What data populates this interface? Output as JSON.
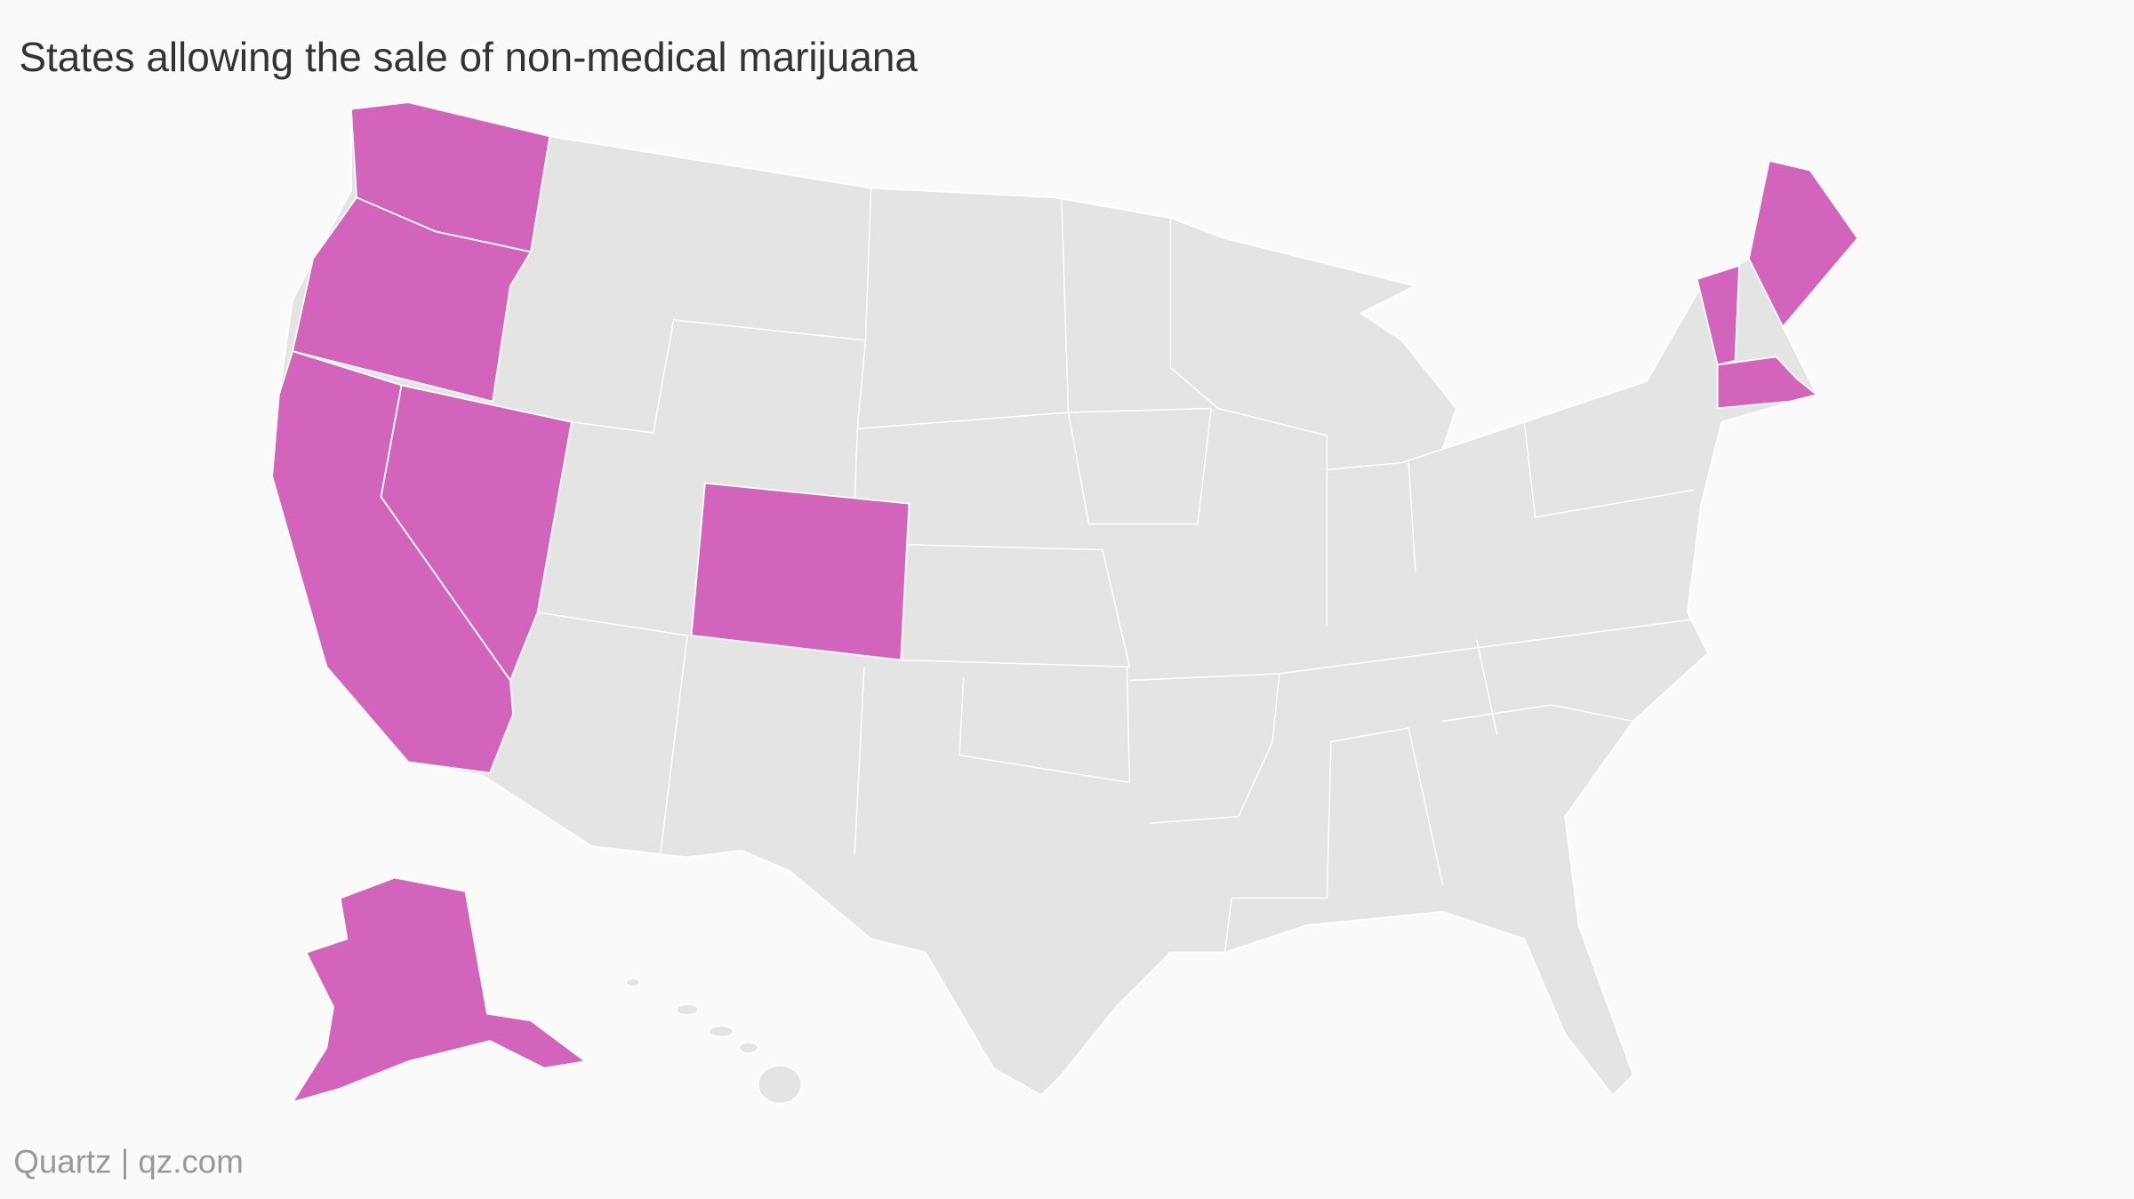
{
  "header": {
    "title": "States allowing the sale of non-medical marijuana"
  },
  "map": {
    "highlight_color": "#d264bb",
    "base_color": "#e4e4e4",
    "border_color": "#ffffff"
  },
  "footer": {
    "source": "Quartz | qz.com"
  }
}
